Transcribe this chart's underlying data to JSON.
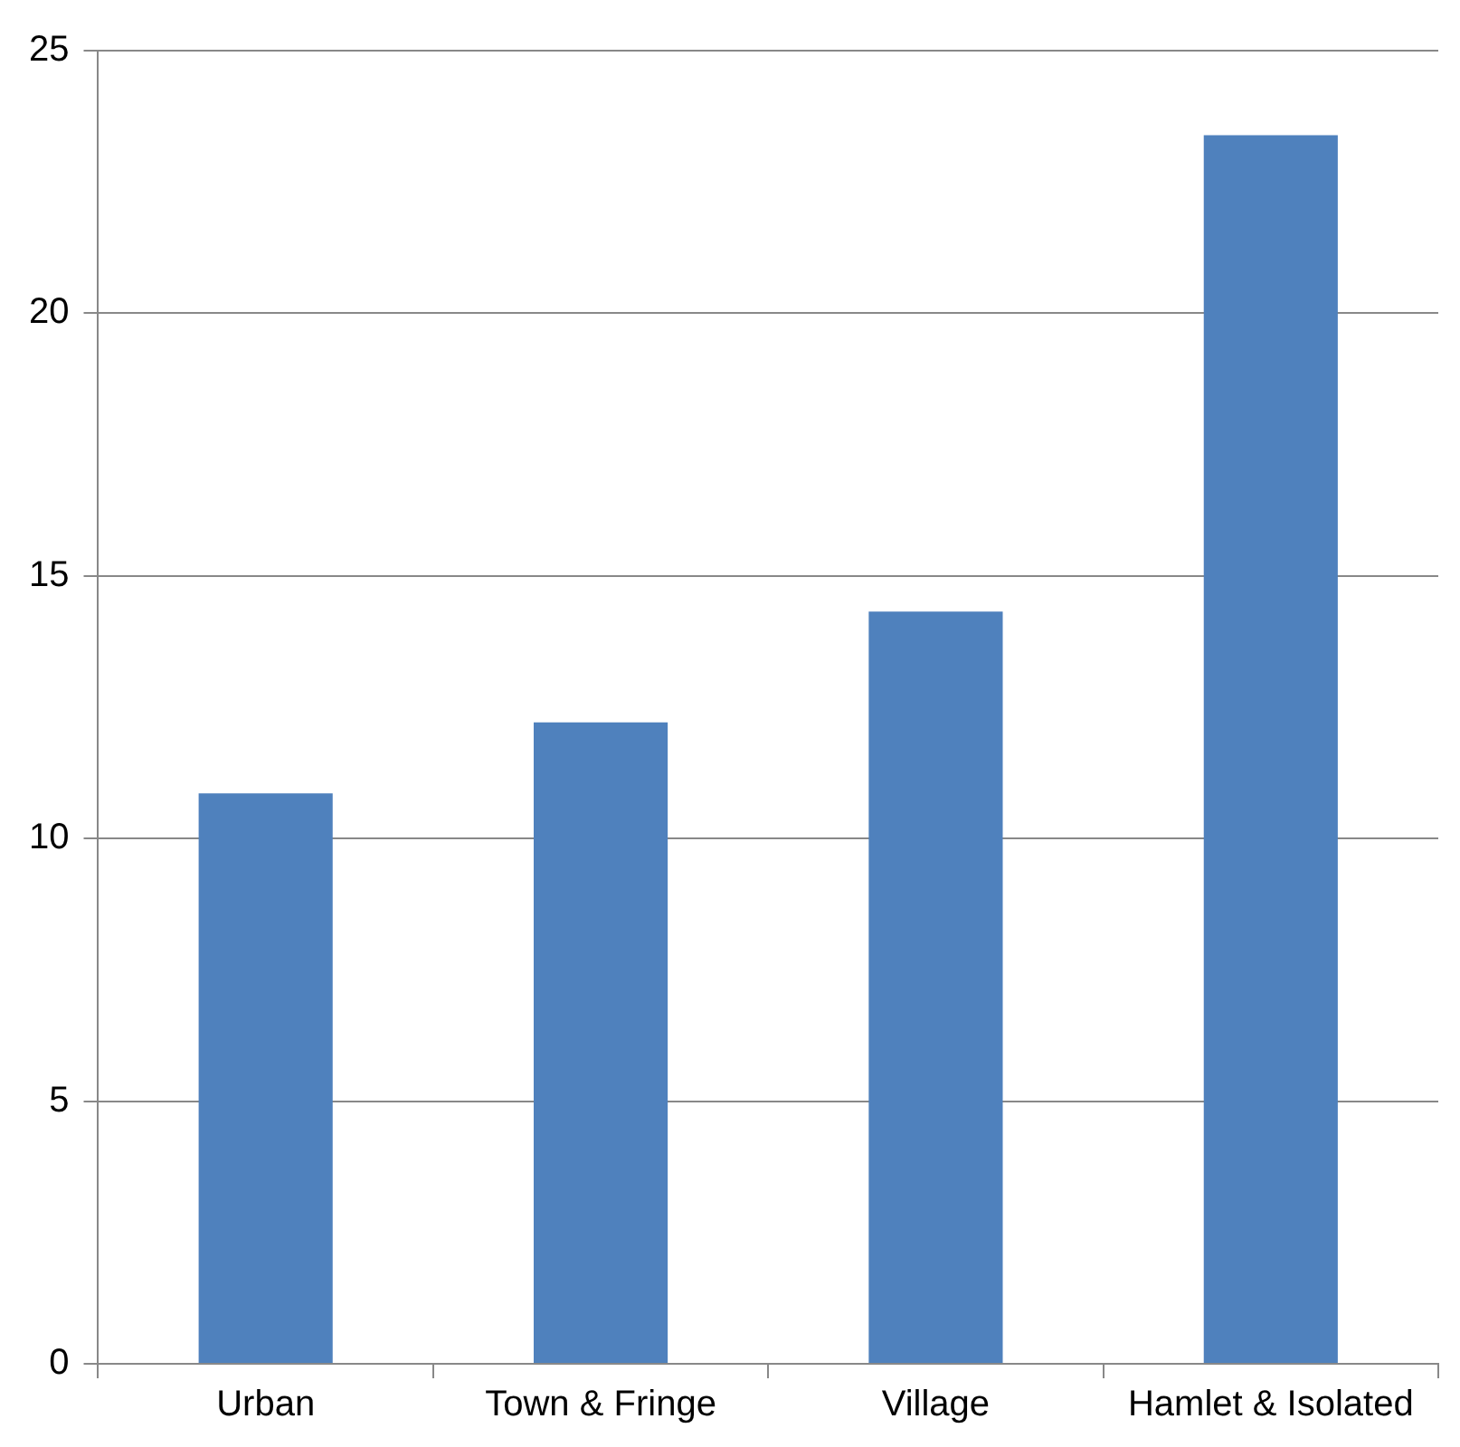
{
  "chart_data": {
    "type": "bar",
    "categories": [
      "Urban",
      "Town & Fringe",
      "Village",
      "Hamlet & Isolated"
    ],
    "values": [
      10.86,
      12.21,
      14.32,
      23.39
    ],
    "color": "#4f81bd",
    "ylim": [
      0,
      25
    ],
    "yticks": [
      0,
      5,
      10,
      15,
      20,
      25
    ],
    "grid": "y",
    "legend": false
  }
}
